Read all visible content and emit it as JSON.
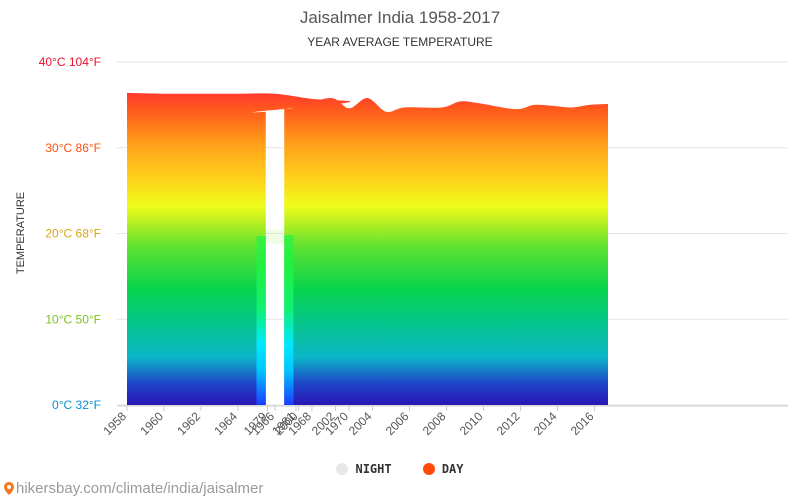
{
  "title": "Jaisalmer India 1958-2017",
  "subtitle": "YEAR AVERAGE TEMPERATURE",
  "legend": {
    "night_label": "NIGHT",
    "day_label": "DAY"
  },
  "source": "hikersbay.com/climate/india/jaisalmer",
  "colors": {
    "legend_night": "#e8e8e8",
    "legend_day": "#ff4b0a"
  },
  "chart_data": {
    "type": "area",
    "title": "Jaisalmer India 1958-2017",
    "subtitle": "YEAR AVERAGE TEMPERATURE",
    "ylabel": "TEMPERATURE",
    "xlabel": "",
    "ylim": [
      0,
      40
    ],
    "y_ticks": [
      {
        "value": 0,
        "label": "0°C 32°F"
      },
      {
        "value": 10,
        "label": "10°C 50°F"
      },
      {
        "value": 20,
        "label": "20°C 68°F"
      },
      {
        "value": 30,
        "label": "30°C 86°F"
      },
      {
        "value": 40,
        "label": "40°C 104°F"
      }
    ],
    "x_categories": [
      "1958",
      "1960",
      "1962",
      "1964",
      "1966",
      "1968",
      "1970",
      "1979",
      "1981",
      "2000",
      "2002",
      "2004",
      "2006",
      "2008",
      "2010",
      "2012",
      "2014",
      "2016"
    ],
    "legend_position": "bottom-center",
    "grid": true,
    "series": [
      {
        "name": "DAY",
        "segments": [
          {
            "points": [
              [
                "1958",
                36.4
              ],
              [
                "1960",
                36.3
              ],
              [
                "1962",
                36.3
              ],
              [
                "1964",
                36.3
              ],
              [
                "1966",
                36.3
              ],
              [
                "1968",
                35.7
              ],
              [
                "1970",
                35.3
              ],
              [
                "1979",
                34.2
              ]
            ],
            "end_x": "1979+0.5"
          },
          {
            "points": [
              [
                "2000",
                34.6
              ],
              [
                "2002",
                35.8
              ],
              [
                "2003",
                34.6
              ],
              [
                "2004",
                35.8
              ],
              [
                "2005",
                34.2
              ],
              [
                "2006",
                34.7
              ],
              [
                "2008",
                34.7
              ],
              [
                "2009",
                35.4
              ],
              [
                "2010",
                35.2
              ],
              [
                "2012",
                34.5
              ],
              [
                "2013",
                35.0
              ],
              [
                "2014",
                34.9
              ],
              [
                "2015",
                34.7
              ],
              [
                "2016",
                35.0
              ],
              [
                "2017",
                35.1
              ]
            ],
            "start_x": "1981+0.5"
          }
        ]
      },
      {
        "name": "NIGHT",
        "segments": [
          {
            "points": [
              [
                "1958",
                21.9
              ],
              [
                "1960",
                21.4
              ],
              [
                "1961",
                21.2
              ],
              [
                "1962",
                19.7
              ],
              [
                "1964",
                19.2
              ],
              [
                "1966",
                18.8
              ],
              [
                "1967",
                18.9
              ],
              [
                "1968",
                19.9
              ],
              [
                "1970",
                20.5
              ],
              [
                "1971",
                20.4
              ],
              [
                "1971.5",
                19.8
              ],
              [
                "1979",
                19.7
              ]
            ]
          },
          {
            "points": [
              [
                "2000",
                19.8
              ],
              [
                "2002",
                20.4
              ],
              [
                "2004",
                20.9
              ],
              [
                "2005",
                19.9
              ],
              [
                "2006",
                20.8
              ],
              [
                "2008",
                20.3
              ],
              [
                "2009",
                20.7
              ],
              [
                "2010",
                20.6
              ],
              [
                "2012",
                19.7
              ],
              [
                "2013",
                20.4
              ],
              [
                "2014",
                20.2
              ],
              [
                "2015",
                20.1
              ],
              [
                "2016",
                20.9
              ],
              [
                "2017",
                20.5
              ]
            ]
          }
        ]
      }
    ]
  }
}
